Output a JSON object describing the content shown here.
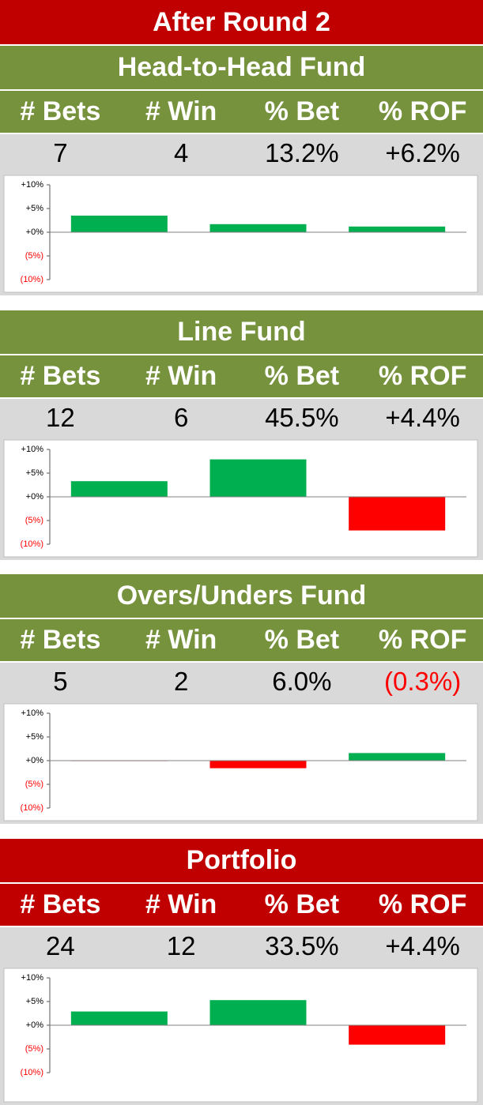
{
  "title": "After Round 2",
  "sections": [
    {
      "title": "Head-to-Head Fund",
      "color": "#76923c",
      "columns": [
        "# Bets",
        "# Win",
        "% Bet",
        "% ROF"
      ],
      "values": [
        "7",
        "4",
        "13.2%",
        "+6.2%"
      ]
    },
    {
      "title": "Line Fund",
      "color": "#76923c",
      "columns": [
        "# Bets",
        "# Win",
        "% Bet",
        "% ROF"
      ],
      "values": [
        "12",
        "6",
        "45.5%",
        "+4.4%"
      ]
    },
    {
      "title": "Overs/Unders Fund",
      "color": "#76923c",
      "columns": [
        "# Bets",
        "# Win",
        "% Bet",
        "% ROF"
      ],
      "values": [
        "5",
        "2",
        "6.0%",
        "(0.3%)"
      ]
    },
    {
      "title": "Portfolio",
      "color": "#c00000",
      "columns": [
        "# Bets",
        "# Win",
        "% Bet",
        "% ROF"
      ],
      "values": [
        "24",
        "12",
        "33.5%",
        "+4.4%"
      ]
    }
  ],
  "chart_data": [
    {
      "type": "bar",
      "values": [
        3.5,
        1.7,
        1.2
      ],
      "colors": [
        "#00b050",
        "#00b050",
        "#00b050"
      ],
      "ylim": [
        -10,
        10
      ],
      "yticks": [
        {
          "value": 10,
          "label": "+10%"
        },
        {
          "value": 5,
          "label": "+5%"
        },
        {
          "value": 0,
          "label": "+0%"
        },
        {
          "value": -5,
          "label": "(5%)"
        },
        {
          "value": -10,
          "label": "(10%)"
        }
      ]
    },
    {
      "type": "bar",
      "values": [
        3.3,
        7.9,
        -7.1
      ],
      "colors": [
        "#00b050",
        "#00b050",
        "#ff0000"
      ],
      "ylim": [
        -10,
        10
      ],
      "yticks": [
        {
          "value": 10,
          "label": "+10%"
        },
        {
          "value": 5,
          "label": "+5%"
        },
        {
          "value": 0,
          "label": "+0%"
        },
        {
          "value": -5,
          "label": "(5%)"
        },
        {
          "value": -10,
          "label": "(10%)"
        }
      ]
    },
    {
      "type": "bar",
      "values": [
        -0.1,
        -1.6,
        1.6
      ],
      "colors": [
        "#ff0000",
        "#ff0000",
        "#00b050"
      ],
      "ylim": [
        -10,
        10
      ],
      "yticks": [
        {
          "value": 10,
          "label": "+10%"
        },
        {
          "value": 5,
          "label": "+5%"
        },
        {
          "value": 0,
          "label": "+0%"
        },
        {
          "value": -5,
          "label": "(5%)"
        },
        {
          "value": -10,
          "label": "(10%)"
        }
      ]
    },
    {
      "type": "bar",
      "values": [
        2.9,
        5.3,
        -4.1
      ],
      "colors": [
        "#00b050",
        "#00b050",
        "#ff0000"
      ],
      "ylim": [
        -10,
        10
      ],
      "yticks": [
        {
          "value": 10,
          "label": "+10%"
        },
        {
          "value": 5,
          "label": "+5%"
        },
        {
          "value": 0,
          "label": "+0%"
        },
        {
          "value": -5,
          "label": "(5%)"
        },
        {
          "value": -10,
          "label": "(10%)"
        }
      ]
    }
  ]
}
